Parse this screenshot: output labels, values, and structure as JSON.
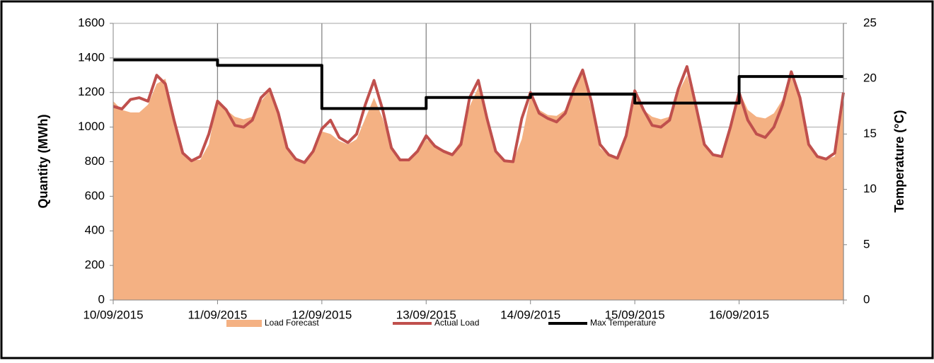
{
  "chart_data": {
    "type": "line",
    "y_label": "Quantity (MWh)",
    "y2_label": "Temperature (°C)",
    "categories": [
      "10/09/2015",
      null,
      null,
      null,
      null,
      null,
      null,
      null,
      null,
      null,
      null,
      null,
      "11/09/2015",
      null,
      null,
      null,
      null,
      null,
      null,
      null,
      null,
      null,
      null,
      null,
      "12/09/2015",
      null,
      null,
      null,
      null,
      null,
      null,
      null,
      null,
      null,
      null,
      null,
      "13/09/2015",
      null,
      null,
      null,
      null,
      null,
      null,
      null,
      null,
      null,
      null,
      null,
      "14/09/2015",
      null,
      null,
      null,
      null,
      null,
      null,
      null,
      null,
      null,
      null,
      null,
      "15/09/2015",
      null,
      null,
      null,
      null,
      null,
      null,
      null,
      null,
      null,
      null,
      null,
      "16/09/2015",
      null,
      null,
      null,
      null,
      null,
      null,
      null,
      null,
      null,
      null,
      null,
      null
    ],
    "series": [
      {
        "name": "Load Forecast",
        "kind": "area",
        "color": "#f4b183",
        "values": [
          1150,
          1100,
          1085,
          1085,
          1130,
          1250,
          1280,
          1060,
          860,
          810,
          810,
          900,
          1160,
          1100,
          1060,
          1045,
          1060,
          1150,
          1210,
          1060,
          870,
          815,
          800,
          860,
          975,
          960,
          920,
          900,
          930,
          1050,
          1170,
          1050,
          880,
          815,
          810,
          850,
          930,
          890,
          870,
          850,
          920,
          1120,
          1230,
          1030,
          850,
          805,
          800,
          930,
          1180,
          1100,
          1070,
          1065,
          1100,
          1230,
          1310,
          1110,
          880,
          835,
          820,
          950,
          1180,
          1100,
          1060,
          1045,
          1060,
          1200,
          1300,
          1110,
          890,
          840,
          825,
          980,
          1210,
          1100,
          1060,
          1050,
          1080,
          1160,
          1290,
          1150,
          900,
          830,
          815,
          830,
          1190
        ]
      },
      {
        "name": "Actual Load",
        "kind": "line",
        "color": "#c0504d",
        "values": [
          1120,
          1105,
          1160,
          1170,
          1150,
          1300,
          1250,
          1040,
          850,
          805,
          830,
          960,
          1150,
          1100,
          1010,
          1000,
          1040,
          1170,
          1220,
          1080,
          880,
          815,
          795,
          860,
          990,
          1040,
          940,
          910,
          960,
          1130,
          1270,
          1100,
          880,
          810,
          810,
          860,
          950,
          890,
          860,
          840,
          900,
          1170,
          1270,
          1050,
          860,
          805,
          800,
          1050,
          1200,
          1080,
          1050,
          1030,
          1080,
          1220,
          1330,
          1150,
          900,
          840,
          820,
          950,
          1210,
          1100,
          1010,
          1000,
          1040,
          1220,
          1350,
          1130,
          900,
          840,
          830,
          1000,
          1200,
          1040,
          960,
          940,
          1000,
          1130,
          1320,
          1170,
          900,
          830,
          815,
          850,
          1200
        ]
      },
      {
        "name": "Max Temperature",
        "kind": "line",
        "step": true,
        "axis": "y2",
        "color": "#000000",
        "values": [
          21.7,
          21.7,
          21.7,
          21.7,
          21.7,
          21.7,
          21.7,
          21.7,
          21.7,
          21.7,
          21.7,
          21.7,
          21.2,
          21.2,
          21.2,
          21.2,
          21.2,
          21.2,
          21.2,
          21.2,
          21.2,
          21.2,
          21.2,
          21.2,
          17.3,
          17.3,
          17.3,
          17.3,
          17.3,
          17.3,
          17.3,
          17.3,
          17.3,
          17.3,
          17.3,
          17.3,
          18.3,
          18.3,
          18.3,
          18.3,
          18.3,
          18.3,
          18.3,
          18.3,
          18.3,
          18.3,
          18.3,
          18.3,
          18.6,
          18.6,
          18.6,
          18.6,
          18.6,
          18.6,
          18.6,
          18.6,
          18.6,
          18.6,
          18.6,
          18.6,
          17.8,
          17.8,
          17.8,
          17.8,
          17.8,
          17.8,
          17.8,
          17.8,
          17.8,
          17.8,
          17.8,
          17.8,
          20.2,
          20.2,
          20.2,
          20.2,
          20.2,
          20.2,
          20.2,
          20.2,
          20.2,
          20.2,
          20.2,
          20.2,
          20.2
        ]
      }
    ],
    "ylim": [
      0,
      1600
    ],
    "yticks": [
      0,
      200,
      400,
      600,
      800,
      1000,
      1200,
      1400,
      1600
    ],
    "y2lim": [
      0,
      25
    ],
    "y2ticks": [
      0,
      5,
      10,
      15,
      20,
      25
    ],
    "grid": true,
    "legend": "bottom"
  }
}
